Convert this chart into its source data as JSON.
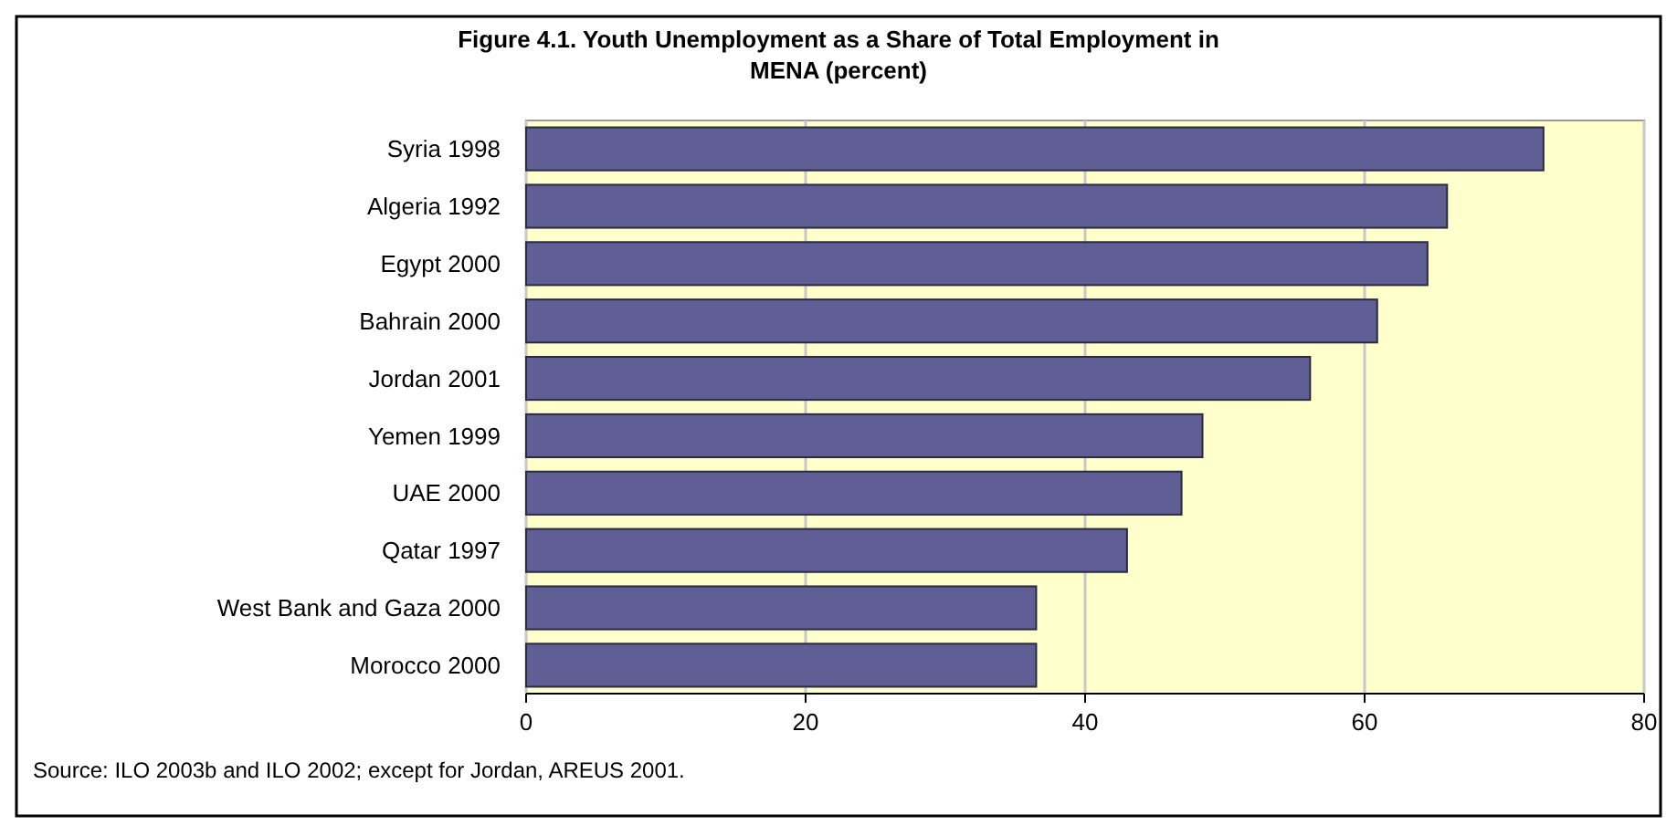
{
  "chart_data": {
    "type": "bar",
    "orientation": "horizontal",
    "title": "Figure 4.1. Youth Unemployment as a Share of Total Employment in MENA (percent)",
    "categories": [
      "Syria 1998",
      "Algeria 1992",
      "Egypt 2000",
      "Bahrain 2000",
      "Jordan 2001",
      "Yemen 1999",
      "UAE 2000",
      "Qatar 1997",
      "West Bank and Gaza 2000",
      "Morocco 2000"
    ],
    "values": [
      72.8,
      65.9,
      64.5,
      60.9,
      56.1,
      48.4,
      46.9,
      43,
      36.5,
      36.5
    ],
    "color": "#5f5f95",
    "xlim": [
      0,
      80
    ],
    "xticks": [
      0,
      20,
      40,
      60,
      80
    ],
    "grid": "x",
    "annotations": [
      "Source: ILO 2003b and ILO 2002; except for Jordan, AREUS 2001."
    ]
  }
}
